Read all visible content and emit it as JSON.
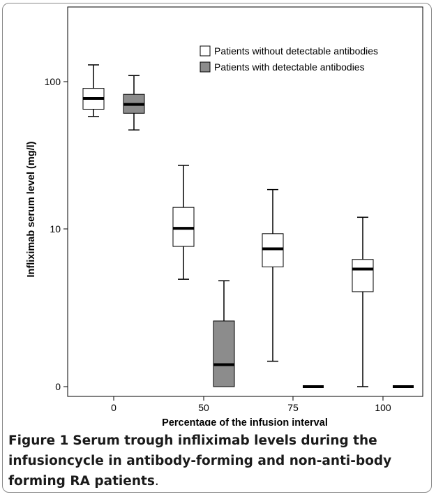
{
  "chart_data": {
    "type": "box",
    "xlabel": "Percentage of the infusion interval",
    "ylabel": "Infliximab serum level (mg/l)",
    "y_scale": "log",
    "y_ticks": [
      {
        "value": 0.1,
        "label": "0"
      },
      {
        "value": 10,
        "label": "10"
      },
      {
        "value": 100,
        "label": "100"
      }
    ],
    "categories": [
      "0",
      "50",
      "75",
      "100"
    ],
    "legend": {
      "position": "top-right"
    },
    "series": [
      {
        "name": "Patients without detectable antibodies",
        "color": "#ffffff",
        "boxes": [
          {
            "min": 58,
            "q1": 65,
            "median": 77,
            "q3": 90,
            "max": 130
          },
          {
            "min": 2.3,
            "q1": 6,
            "median": 10.1,
            "q3": 14,
            "max": 27
          },
          {
            "min": 0.21,
            "q1": 3.3,
            "median": 5.6,
            "q3": 8.7,
            "max": 18.5
          },
          {
            "min": 0.1,
            "q1": 1.6,
            "median": 3.1,
            "q3": 4.1,
            "max": 12
          }
        ]
      },
      {
        "name": "Patients with detectable antibodies",
        "color": "#8c8c8c",
        "boxes": [
          {
            "min": 47,
            "q1": 61,
            "median": 70,
            "q3": 82,
            "max": 110
          },
          {
            "min": 0.1,
            "q1": 0.1,
            "median": 0.19,
            "q3": 0.68,
            "max": 2.2
          },
          {
            "min": 0.1,
            "q1": 0.1,
            "median": 0.1,
            "q3": 0.1,
            "max": 0.1
          },
          {
            "min": 0.1,
            "q1": 0.1,
            "median": 0.1,
            "q3": 0.1,
            "max": 0.1
          }
        ]
      }
    ]
  },
  "caption": {
    "label": "Figure 1",
    "text": "Serum trough infliximab levels during the infusioncycle in antibody-forming and non-anti-body forming RA patients",
    "end": "."
  }
}
